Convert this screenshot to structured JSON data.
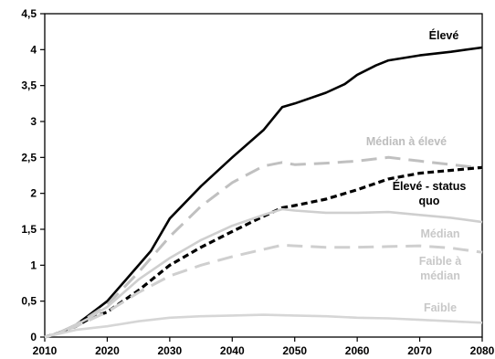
{
  "chart_data": {
    "type": "line",
    "title": "",
    "xlabel": "",
    "ylabel": "",
    "xlim": [
      2010,
      2080
    ],
    "ylim": [
      0,
      4.5
    ],
    "x_ticks": [
      "2010",
      "2020",
      "2030",
      "2040",
      "2050",
      "2060",
      "2070",
      "2080"
    ],
    "y_ticks": [
      "0",
      "0,5",
      "1",
      "1,5",
      "2",
      "2,5",
      "3",
      "3,5",
      "4",
      "4,5"
    ],
    "grid": false,
    "legend": "inline-labels",
    "series": [
      {
        "key": "eleve",
        "label_lines": [
          "Élevé"
        ],
        "color": "#000000",
        "dash": "solid",
        "points": [
          [
            2010,
            0
          ],
          [
            2012,
            0.05
          ],
          [
            2015,
            0.17
          ],
          [
            2017,
            0.3
          ],
          [
            2020,
            0.5
          ],
          [
            2023,
            0.8
          ],
          [
            2027,
            1.2
          ],
          [
            2030,
            1.65
          ],
          [
            2035,
            2.1
          ],
          [
            2040,
            2.5
          ],
          [
            2045,
            2.88
          ],
          [
            2048,
            3.2
          ],
          [
            2050,
            3.25
          ],
          [
            2055,
            3.4
          ],
          [
            2058,
            3.52
          ],
          [
            2060,
            3.65
          ],
          [
            2063,
            3.78
          ],
          [
            2065,
            3.85
          ],
          [
            2070,
            3.92
          ],
          [
            2075,
            3.97
          ],
          [
            2080,
            4.03
          ]
        ]
      },
      {
        "key": "median-a-eleve",
        "label_lines": [
          "Médian à élevé"
        ],
        "color": "#c0c0c0",
        "dash": "long-dash",
        "points": [
          [
            2010,
            0
          ],
          [
            2012,
            0.05
          ],
          [
            2015,
            0.17
          ],
          [
            2017,
            0.28
          ],
          [
            2020,
            0.45
          ],
          [
            2025,
            0.9
          ],
          [
            2030,
            1.4
          ],
          [
            2035,
            1.82
          ],
          [
            2040,
            2.15
          ],
          [
            2045,
            2.38
          ],
          [
            2048,
            2.43
          ],
          [
            2050,
            2.4
          ],
          [
            2055,
            2.42
          ],
          [
            2060,
            2.45
          ],
          [
            2065,
            2.5
          ],
          [
            2070,
            2.45
          ],
          [
            2075,
            2.4
          ],
          [
            2080,
            2.35
          ]
        ]
      },
      {
        "key": "eleve-status-quo",
        "label_lines": [
          "Élevé - status",
          "quo"
        ],
        "color": "#000000",
        "dash": "short-dash",
        "points": [
          [
            2010,
            0
          ],
          [
            2012,
            0.05
          ],
          [
            2015,
            0.15
          ],
          [
            2017,
            0.25
          ],
          [
            2020,
            0.35
          ],
          [
            2025,
            0.65
          ],
          [
            2030,
            1.0
          ],
          [
            2035,
            1.25
          ],
          [
            2040,
            1.47
          ],
          [
            2045,
            1.68
          ],
          [
            2048,
            1.8
          ],
          [
            2050,
            1.83
          ],
          [
            2055,
            1.92
          ],
          [
            2060,
            2.05
          ],
          [
            2065,
            2.2
          ],
          [
            2070,
            2.28
          ],
          [
            2075,
            2.32
          ],
          [
            2080,
            2.36
          ]
        ]
      },
      {
        "key": "median",
        "label_lines": [
          "Médian"
        ],
        "color": "#cfcfcf",
        "dash": "solid",
        "points": [
          [
            2010,
            0
          ],
          [
            2012,
            0.05
          ],
          [
            2015,
            0.17
          ],
          [
            2017,
            0.26
          ],
          [
            2020,
            0.42
          ],
          [
            2025,
            0.8
          ],
          [
            2030,
            1.1
          ],
          [
            2035,
            1.35
          ],
          [
            2040,
            1.55
          ],
          [
            2045,
            1.7
          ],
          [
            2048,
            1.78
          ],
          [
            2050,
            1.76
          ],
          [
            2055,
            1.73
          ],
          [
            2060,
            1.73
          ],
          [
            2065,
            1.74
          ],
          [
            2070,
            1.7
          ],
          [
            2075,
            1.66
          ],
          [
            2080,
            1.6
          ]
        ]
      },
      {
        "key": "faible-a-median",
        "label_lines": [
          "Faible à",
          "médian"
        ],
        "color": "#cfcfcf",
        "dash": "long-dash",
        "points": [
          [
            2010,
            0
          ],
          [
            2012,
            0.05
          ],
          [
            2015,
            0.15
          ],
          [
            2017,
            0.23
          ],
          [
            2020,
            0.35
          ],
          [
            2025,
            0.62
          ],
          [
            2030,
            0.85
          ],
          [
            2035,
            1.0
          ],
          [
            2040,
            1.12
          ],
          [
            2045,
            1.22
          ],
          [
            2048,
            1.28
          ],
          [
            2050,
            1.27
          ],
          [
            2055,
            1.25
          ],
          [
            2060,
            1.25
          ],
          [
            2065,
            1.26
          ],
          [
            2070,
            1.27
          ],
          [
            2075,
            1.24
          ],
          [
            2080,
            1.18
          ]
        ]
      },
      {
        "key": "faible",
        "label_lines": [
          "Faible"
        ],
        "color": "#d6d6d6",
        "dash": "solid",
        "points": [
          [
            2010,
            0
          ],
          [
            2012,
            0.04
          ],
          [
            2015,
            0.1
          ],
          [
            2020,
            0.15
          ],
          [
            2025,
            0.22
          ],
          [
            2030,
            0.27
          ],
          [
            2035,
            0.29
          ],
          [
            2040,
            0.3
          ],
          [
            2045,
            0.31
          ],
          [
            2050,
            0.3
          ],
          [
            2055,
            0.29
          ],
          [
            2060,
            0.27
          ],
          [
            2065,
            0.26
          ],
          [
            2070,
            0.24
          ],
          [
            2075,
            0.22
          ],
          [
            2080,
            0.2
          ]
        ]
      }
    ]
  }
}
